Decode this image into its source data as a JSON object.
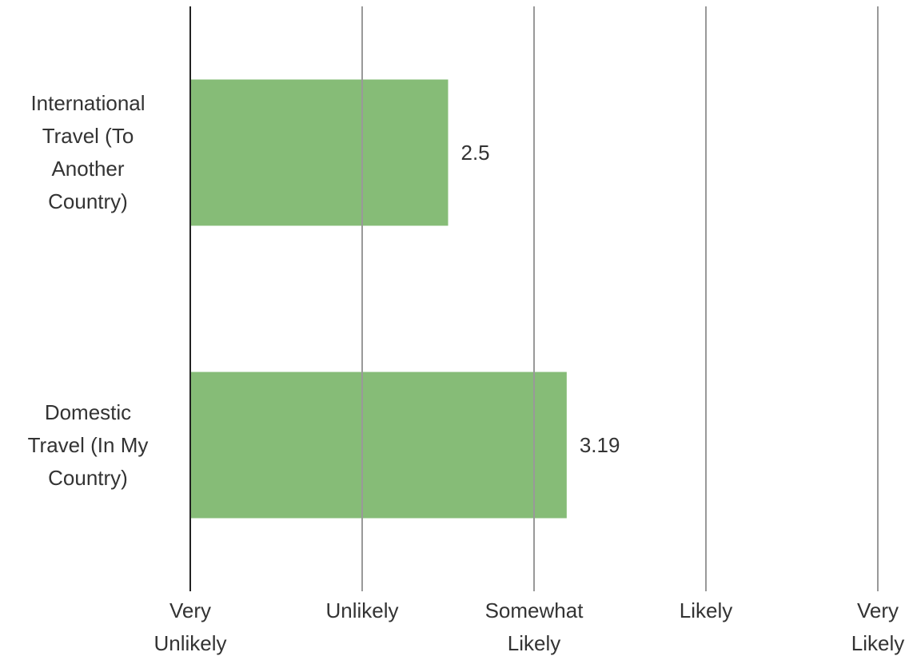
{
  "chart_data": {
    "type": "bar",
    "orientation": "horizontal",
    "categories": [
      "International Travel (To Another Country)",
      "Domestic Travel (In My Country)"
    ],
    "values": [
      2.5,
      3.19
    ],
    "color": "#7cb66b",
    "xlim": [
      1,
      5
    ],
    "xticks": [
      {
        "value": 1,
        "label": "Very Unlikely"
      },
      {
        "value": 2,
        "label": "Unlikely"
      },
      {
        "value": 3,
        "label": "Somewhat Likely"
      },
      {
        "value": 4,
        "label": "Likely"
      },
      {
        "value": 5,
        "label": "Very Likely"
      }
    ],
    "grid": true
  }
}
